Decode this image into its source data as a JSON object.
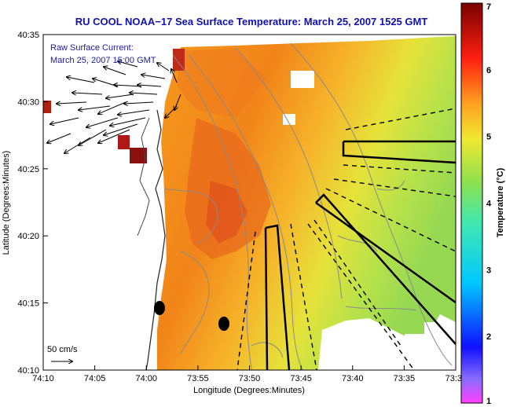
{
  "title": "RU COOL  NOAA−17  Sea Surface Temperature:  March 25, 2007 1525 GMT",
  "legend": {
    "line1": "Raw Surface Current:",
    "line2": "March 25, 2007 15:00 GMT"
  },
  "axes": {
    "xlabel": "Longitude (Degrees:Minutes)",
    "ylabel": "Latitude (Degrees:Minutes)",
    "xticks": [
      "74:10",
      "74:05",
      "74:00",
      "73:55",
      "73:50",
      "73:45",
      "73:40",
      "73:35",
      "73:3"
    ],
    "yticks": [
      "40:35",
      "40:30",
      "40:25",
      "40:20",
      "40:15",
      "40:10"
    ]
  },
  "colorbar": {
    "label": "Temperature (°C)",
    "ticks": [
      "7",
      "6",
      "5",
      "4",
      "3",
      "2",
      "1"
    ],
    "min": 1,
    "max": 7
  },
  "scale": {
    "label": "50 cm/s"
  },
  "colors": {
    "title": "#1010b0",
    "land": "#ffffff",
    "warm": "#f08a1e",
    "hot": "#e3521c",
    "cool": "#a8e04a",
    "dark_red": "#8b1010"
  }
}
